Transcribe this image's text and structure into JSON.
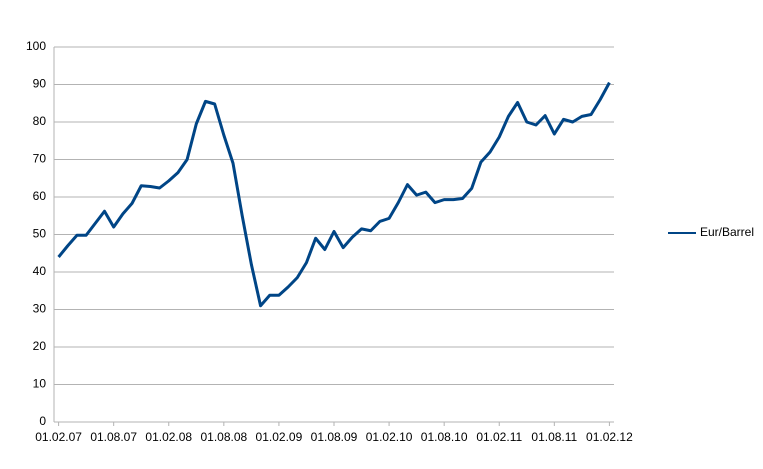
{
  "chart_data": {
    "type": "line",
    "categories": [
      "01.02.07",
      null,
      null,
      null,
      null,
      null,
      "01.08.07",
      null,
      null,
      null,
      null,
      null,
      "01.02.08",
      null,
      null,
      null,
      null,
      null,
      "01.08.08",
      null,
      null,
      null,
      null,
      null,
      "01.02.09",
      null,
      null,
      null,
      null,
      null,
      "01.08.09",
      null,
      null,
      null,
      null,
      null,
      "01.02.10",
      null,
      null,
      null,
      null,
      null,
      "01.08.10",
      null,
      null,
      null,
      null,
      null,
      "01.02.11",
      null,
      null,
      null,
      null,
      null,
      "01.08.11",
      null,
      null,
      null,
      null,
      null,
      "01.02.12"
    ],
    "series": [
      {
        "name": "Eur/Barrel",
        "color": "#004586",
        "values": [
          44,
          47,
          49.8,
          49.8,
          53,
          56.2,
          52,
          55.5,
          58.3,
          63,
          62.8,
          62.4,
          64.3,
          66.5,
          70,
          79.5,
          85.5,
          84.8,
          76.5,
          69,
          55,
          42,
          31,
          33.8,
          33.8,
          36,
          38.5,
          42.5,
          49,
          46,
          50.8,
          46.5,
          49.3,
          51.5,
          51,
          53.5,
          54.3,
          58.5,
          63.3,
          60.5,
          61.3,
          58.5,
          59.3,
          59.3,
          59.6,
          62.3,
          69.3,
          72,
          76,
          81.5,
          85.2,
          80,
          79.2,
          81.7,
          76.8,
          80.7,
          80,
          81.5,
          82,
          86,
          90.5
        ]
      }
    ],
    "ylim": [
      0,
      100
    ],
    "yticks": [
      0,
      10,
      20,
      30,
      40,
      50,
      60,
      70,
      80,
      90,
      100
    ],
    "grid": true,
    "legend": "right"
  }
}
